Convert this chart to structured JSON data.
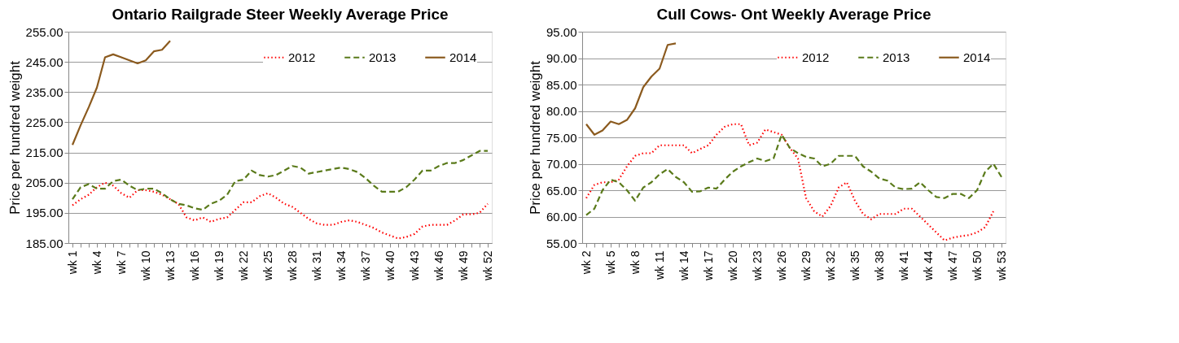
{
  "chart_data": [
    {
      "type": "line",
      "title": "Ontario Railgrade Steer Weekly Average Price",
      "ylabel": "Price per hundred weight",
      "categories": [
        "wk 1",
        null,
        null,
        "wk 4",
        null,
        null,
        "wk 7",
        null,
        null,
        "wk 10",
        null,
        null,
        "wk 13",
        null,
        null,
        "wk 16",
        null,
        null,
        "wk 19",
        null,
        null,
        "wk 22",
        null,
        null,
        "wk 25",
        null,
        null,
        "wk 28",
        null,
        null,
        "wk 31",
        null,
        null,
        "wk 34",
        null,
        null,
        "wk 37",
        null,
        null,
        "wk 40",
        null,
        null,
        "wk 43",
        null,
        null,
        "wk 46",
        null,
        null,
        "wk 49",
        null,
        null,
        "wk 52"
      ],
      "series": [
        {
          "name": "2012",
          "color": "#ff0000",
          "line_style": "dotted",
          "values": [
            197.5,
            199.5,
            201,
            203.5,
            205,
            204,
            201.5,
            200,
            202.5,
            202.5,
            202,
            201,
            199.5,
            198,
            193.5,
            192.5,
            193.5,
            192,
            193,
            193.5,
            196,
            198.5,
            198.5,
            200.5,
            201.5,
            200,
            198,
            197,
            195,
            193,
            191.5,
            191,
            191,
            192,
            192.5,
            192,
            191,
            190,
            188.5,
            187.5,
            186.5,
            187,
            188,
            190.5,
            191,
            191,
            191,
            192.5,
            194.5,
            194.5,
            195,
            198
          ]
        },
        {
          "name": "2013",
          "color": "#5a7a1a",
          "line_style": "dashed",
          "values": [
            199.5,
            203.5,
            204.5,
            203,
            203,
            205.5,
            206,
            204,
            202.5,
            203,
            203,
            201.5,
            199.5,
            198,
            197.5,
            196.5,
            196,
            198,
            199,
            201,
            205.5,
            206,
            209,
            207.5,
            207,
            207.5,
            209,
            210.5,
            210,
            208,
            208.5,
            209,
            209.5,
            210,
            209.5,
            208.5,
            206.5,
            204,
            202,
            202,
            202,
            203.5,
            206,
            209,
            209,
            210.5,
            211.5,
            211.5,
            212.5,
            214,
            215.5,
            215.5
          ]
        },
        {
          "name": "2014",
          "color": "#8b5a1e",
          "line_style": "solid",
          "values": [
            217.5,
            224,
            230,
            236.5,
            246.5,
            247.5,
            246.5,
            245.5,
            244.5,
            245.5,
            248.5,
            249,
            252,
            null,
            null,
            null,
            null,
            null,
            null,
            null,
            null,
            null,
            null,
            null,
            null,
            null,
            null,
            null,
            null,
            null,
            null,
            null,
            null,
            null,
            null,
            null,
            null,
            null,
            null,
            null,
            null,
            null,
            null,
            null,
            null,
            null,
            null,
            null,
            null,
            null,
            null,
            null
          ]
        }
      ],
      "ylim": [
        185,
        255
      ],
      "yticks": [
        {
          "value": 185,
          "label": "185.00"
        },
        {
          "value": 195,
          "label": "195.00"
        },
        {
          "value": 205,
          "label": "205.00"
        },
        {
          "value": 215,
          "label": "215.00"
        },
        {
          "value": 225,
          "label": "225.00"
        },
        {
          "value": 235,
          "label": "235.00"
        },
        {
          "value": 245,
          "label": "245.00"
        },
        {
          "value": 255,
          "label": "255.00"
        }
      ],
      "grid": "y",
      "legend": "top right"
    },
    {
      "type": "line",
      "title": "Cull Cows- Ont Weekly Average Price",
      "ylabel": "Price per hundred weight",
      "categories": [
        "wk 2",
        null,
        null,
        "wk 5",
        null,
        null,
        "wk 8",
        null,
        null,
        "wk 11",
        null,
        null,
        "wk 14",
        null,
        null,
        "wk 17",
        null,
        null,
        "wk 20",
        null,
        null,
        "wk 23",
        null,
        null,
        "wk 26",
        null,
        null,
        "wk 29",
        null,
        null,
        "wk 32",
        null,
        null,
        "wk 35",
        null,
        null,
        "wk 38",
        null,
        null,
        "wk 41",
        null,
        null,
        "wk 44",
        null,
        null,
        "wk 47",
        null,
        null,
        "wk 50",
        null,
        null,
        "wk 53"
      ],
      "series": [
        {
          "name": "2012",
          "color": "#ff0000",
          "line_style": "dotted",
          "values": [
            63.5,
            66,
            66.5,
            66.5,
            67,
            69.5,
            71.5,
            72,
            72,
            73.5,
            73.5,
            73.5,
            73.5,
            72,
            72.8,
            73.5,
            75.5,
            77,
            77.5,
            77.5,
            73.5,
            74,
            76.5,
            76,
            75.5,
            73,
            71,
            63.5,
            61,
            60,
            62,
            65.5,
            66.5,
            63,
            60.5,
            59.5,
            60.5,
            60.5,
            60.5,
            61.5,
            61.5,
            60,
            58.5,
            57,
            55.5,
            56,
            56.3,
            56.5,
            57,
            58,
            61,
            null
          ]
        },
        {
          "name": "2013",
          "color": "#5a7a1a",
          "line_style": "dashed",
          "values": [
            60.3,
            61.5,
            65,
            67,
            66.5,
            65,
            63,
            65.5,
            66.5,
            68,
            69,
            67.5,
            66.5,
            64.7,
            64.8,
            65.5,
            65.3,
            67,
            68.5,
            69.5,
            70.3,
            71,
            70.5,
            71,
            75.5,
            73,
            72,
            71.3,
            71,
            69.5,
            70,
            71.5,
            71.5,
            71.5,
            69.5,
            68.5,
            67.2,
            66.8,
            65.5,
            65.2,
            65.3,
            66.5,
            65,
            63.7,
            63.5,
            64.3,
            64.3,
            63.5,
            65,
            68.5,
            70,
            67.5
          ]
        },
        {
          "name": "2014",
          "color": "#8b5a1e",
          "line_style": "solid",
          "values": [
            77.5,
            75.5,
            76.3,
            78,
            77.5,
            78.3,
            80.5,
            84.5,
            86.5,
            88,
            92.5,
            92.8,
            null,
            null,
            null,
            null,
            null,
            null,
            null,
            null,
            null,
            null,
            null,
            null,
            null,
            null,
            null,
            null,
            null,
            null,
            null,
            null,
            null,
            null,
            null,
            null,
            null,
            null,
            null,
            null,
            null,
            null,
            null,
            null,
            null,
            null,
            null,
            null,
            null,
            null,
            null,
            null
          ]
        }
      ],
      "ylim": [
        55,
        95
      ],
      "yticks": [
        {
          "value": 55,
          "label": "55.00"
        },
        {
          "value": 60,
          "label": "60.00"
        },
        {
          "value": 65,
          "label": "65.00"
        },
        {
          "value": 70,
          "label": "70.00"
        },
        {
          "value": 75,
          "label": "75.00"
        },
        {
          "value": 80,
          "label": "80.00"
        },
        {
          "value": 85,
          "label": "85.00"
        },
        {
          "value": 90,
          "label": "90.00"
        },
        {
          "value": 95,
          "label": "95.00"
        }
      ],
      "grid": "y",
      "legend": "top right"
    }
  ]
}
